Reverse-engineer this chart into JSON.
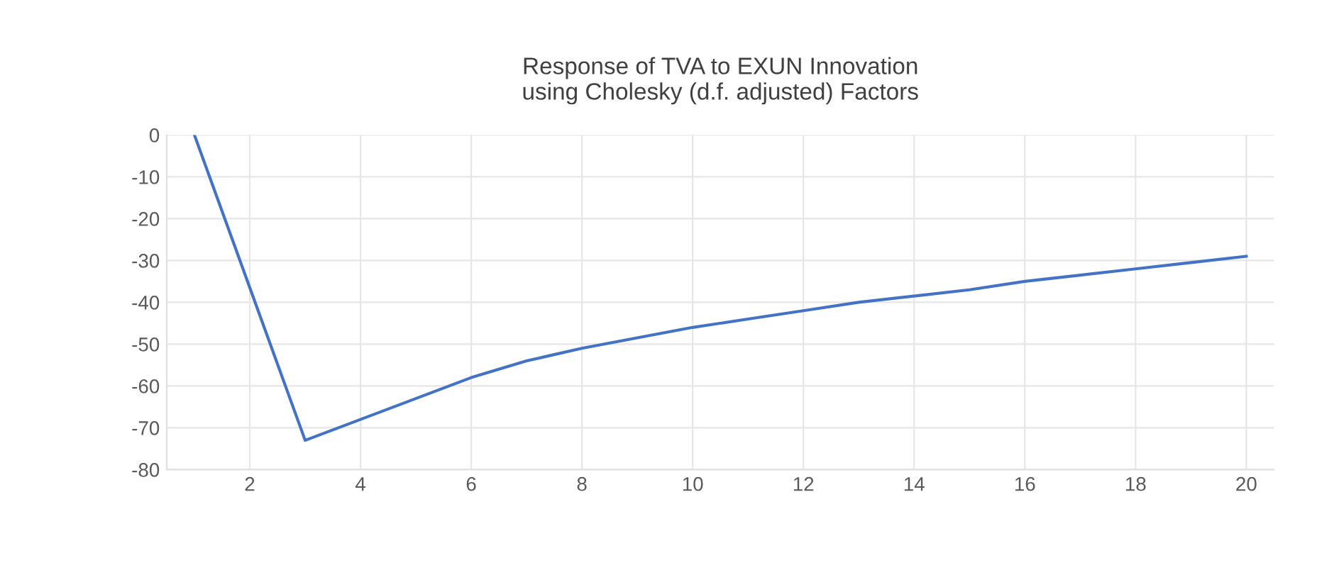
{
  "chart_data": {
    "type": "line",
    "title": "Response of TVA to EXUN Innovation\nusing Cholesky (d.f. adjusted) Factors",
    "x": [
      1,
      2,
      3,
      4,
      5,
      6,
      7,
      8,
      9,
      10,
      11,
      12,
      13,
      14,
      15,
      16,
      17,
      18,
      19,
      20
    ],
    "series": [
      {
        "color": "#4472c4",
        "values": [
          0,
          -36.5,
          -73,
          -68,
          -63,
          -58,
          -54,
          -51,
          -48.5,
          -46,
          -44,
          -42,
          -40,
          -38.5,
          -37,
          -35,
          -33.5,
          -32,
          -30.5,
          -29
        ]
      }
    ],
    "xlim": [
      0.5,
      20.5
    ],
    "xticks": [
      2,
      4,
      6,
      8,
      10,
      12,
      14,
      16,
      18,
      20
    ],
    "ylim": [
      -80,
      0
    ],
    "yticks": [
      -80,
      -70,
      -60,
      -50,
      -40,
      -30,
      -20,
      -10,
      0
    ],
    "grid": true,
    "marker": "none",
    "line_style": "solid"
  }
}
